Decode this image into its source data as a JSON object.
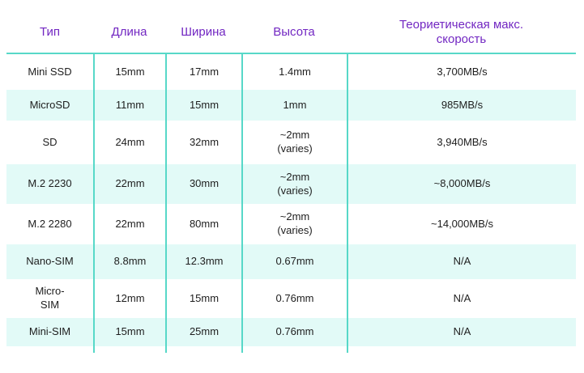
{
  "chart_data": {
    "type": "table",
    "columns": [
      "Тип",
      "Длина",
      "Ширина",
      "Высота",
      "Теориетическая макс.\nскорость"
    ],
    "rows": [
      [
        "Mini SSD",
        "15mm",
        "17mm",
        "1.4mm",
        "3,700MB/s"
      ],
      [
        "MicroSD",
        "11mm",
        "15mm",
        "1mm",
        "985MB/s"
      ],
      [
        "SD",
        "24mm",
        "32mm",
        "~2mm\n(varies)",
        "3,940MB/s"
      ],
      [
        "M.2 2230",
        "22mm",
        "30mm",
        "~2mm\n(varies)",
        "~8,000MB/s"
      ],
      [
        "M.2 2280",
        "22mm",
        "80mm",
        "~2mm\n(varies)",
        "~14,000MB/s"
      ],
      [
        "Nano-SIM",
        "8.8mm",
        "12.3mm",
        "0.67mm",
        "N/A"
      ],
      [
        "Micro-\nSIM",
        "12mm",
        "15mm",
        "0.76mm",
        "N/A"
      ],
      [
        "Mini-SIM",
        "15mm",
        "25mm",
        "0.76mm",
        "N/A"
      ]
    ],
    "layout": {
      "grid": "horizontal header rule + vertical column rules in body",
      "zebra_striping": "even rows tinted"
    },
    "colors": {
      "header_text": "#7227c2",
      "body_text": "#1e1e1e",
      "rule_teal": "#57d8c8",
      "row_alt_bg": "#e2faf7",
      "background": "#ffffff"
    }
  }
}
